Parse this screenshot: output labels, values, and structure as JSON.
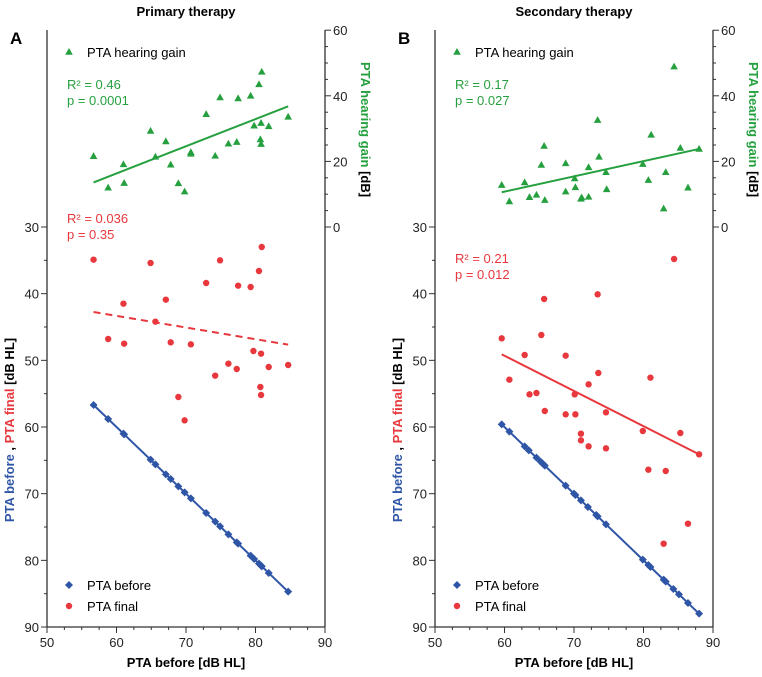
{
  "colors": {
    "gain": "#26a03f",
    "final": "#e8383d",
    "before": "#2f55a6",
    "axis": "#333333"
  },
  "chart_data": [
    {
      "type": "scatter",
      "panel_label": "A",
      "title": "Primary therapy",
      "xlabel": "PTA before [dB HL]",
      "ylabel_left": {
        "part1": "PTA before",
        "sep": " , ",
        "part2": "PTA final",
        "unit": " [dB HL]"
      },
      "ylabel_right": {
        "main": "PTA hearing gain",
        "unit": " [dB]"
      },
      "xlim": [
        50,
        90
      ],
      "xticks": [
        50,
        60,
        70,
        80,
        90
      ],
      "ylim_left": [
        30,
        90
      ],
      "yticks_left": [
        30,
        40,
        50,
        60,
        70,
        80,
        90
      ],
      "left_inverted": true,
      "ylim_right": [
        0,
        60
      ],
      "yticks_right": [
        0,
        20,
        40,
        60
      ],
      "legend": {
        "gain": "PTA hearing gain",
        "before": "PTA before",
        "final": "PTA final"
      },
      "stats": {
        "gain_r2": "R² = 0.46",
        "gain_p": "p  = 0.0001",
        "final_r2": "R² = 0.036",
        "final_p": "p  = 0.35"
      },
      "series": [
        {
          "name": "PTA before",
          "axis": "left",
          "marker": "diamond",
          "color_key": "before",
          "x": [
            56.7,
            58.8,
            61.0,
            61.1,
            64.9,
            65.6,
            67.1,
            67.8,
            68.9,
            69.8,
            70.7,
            72.9,
            74.2,
            74.9,
            76.1,
            77.3,
            77.5,
            79.3,
            79.8,
            80.5,
            80.8,
            80.9,
            81.9,
            84.7
          ],
          "y": [
            56.7,
            58.8,
            61.0,
            61.1,
            64.9,
            65.6,
            67.1,
            67.8,
            68.9,
            69.8,
            70.7,
            72.9,
            74.2,
            74.9,
            76.1,
            77.3,
            77.5,
            79.3,
            79.8,
            80.5,
            80.8,
            80.9,
            81.9,
            84.7
          ]
        },
        {
          "name": "PTA final",
          "axis": "left",
          "marker": "circle",
          "color_key": "final",
          "x": [
            56.7,
            64.9,
            74.9,
            80.9,
            80.5,
            72.9,
            77.5,
            79.3,
            61.0,
            67.1,
            65.6,
            58.8,
            61.1,
            67.8,
            70.7,
            79.7,
            80.8,
            76.1,
            77.3,
            81.9,
            84.7,
            74.2,
            80.7,
            80.8,
            68.9,
            69.8
          ],
          "y": [
            34.9,
            35.4,
            35.0,
            33.0,
            36.6,
            38.4,
            38.8,
            39.0,
            41.5,
            40.9,
            44.2,
            46.8,
            47.5,
            47.3,
            47.6,
            48.6,
            49.0,
            50.5,
            51.3,
            51.0,
            50.7,
            52.3,
            54.0,
            55.2,
            55.5,
            59.0
          ]
        },
        {
          "name": "PTA hearing gain",
          "axis": "right",
          "marker": "triangle",
          "color_key": "gain",
          "x": [
            56.7,
            58.8,
            61.0,
            61.1,
            64.9,
            65.6,
            67.1,
            67.8,
            68.9,
            69.8,
            70.7,
            70.7,
            72.9,
            74.2,
            74.9,
            76.1,
            77.3,
            77.5,
            79.3,
            79.8,
            80.5,
            80.8,
            80.9,
            80.7,
            80.8,
            81.9,
            84.7
          ],
          "y": [
            21.6,
            12.0,
            19.1,
            13.4,
            29.3,
            21.4,
            26.1,
            19.0,
            13.3,
            10.8,
            22.8,
            22.3,
            34.4,
            21.7,
            39.5,
            25.4,
            25.9,
            39.2,
            40.0,
            30.9,
            43.5,
            31.7,
            47.3,
            26.7,
            25.3,
            30.7,
            33.6
          ]
        }
      ],
      "trendlines": [
        {
          "series": "PTA hearing gain",
          "axis": "right",
          "x": [
            56.7,
            84.7
          ],
          "y": [
            13.6,
            36.8
          ],
          "style": "solid",
          "color_key": "gain"
        },
        {
          "series": "PTA final",
          "axis": "left",
          "x": [
            56.7,
            84.7
          ],
          "y": [
            42.75,
            47.65
          ],
          "style": "dashed",
          "color_key": "final"
        },
        {
          "series": "PTA before",
          "axis": "left",
          "x": [
            56.7,
            84.7
          ],
          "y": [
            56.7,
            84.7
          ],
          "style": "solid",
          "color_key": "before"
        }
      ]
    },
    {
      "type": "scatter",
      "panel_label": "B",
      "title": "Secondary therapy",
      "xlabel": "PTA before [dB HL]",
      "ylabel_left": {
        "part1": "PTA before",
        "sep": " , ",
        "part2": "PTA final",
        "unit": " [dB HL]"
      },
      "ylabel_right": {
        "main": "PTA hearing gain",
        "unit": " [dB]"
      },
      "xlim": [
        50,
        90
      ],
      "xticks": [
        50,
        60,
        70,
        80,
        90
      ],
      "ylim_left": [
        30,
        90
      ],
      "yticks_left": [
        30,
        40,
        50,
        60,
        70,
        80,
        90
      ],
      "left_inverted": true,
      "ylim_right": [
        0,
        60
      ],
      "yticks_right": [
        0,
        20,
        40,
        60
      ],
      "legend": {
        "gain": "PTA hearing gain",
        "before": "PTA before",
        "final": "PTA final"
      },
      "stats": {
        "gain_r2": "R² = 0.17",
        "gain_p": "p  = 0.027",
        "final_r2": "R² = 0.21",
        "final_p": "p  = 0.012"
      },
      "series": [
        {
          "name": "PTA before",
          "axis": "left",
          "marker": "diamond",
          "color_key": "before",
          "x": [
            59.6,
            60.7,
            62.9,
            63.5,
            64.6,
            65.2,
            65.5,
            65.8,
            68.8,
            70.0,
            70.2,
            71.0,
            72.0,
            73.2,
            73.4,
            74.6,
            79.9,
            80.7,
            81.0,
            82.9,
            83.2,
            84.3,
            85.1,
            86.4,
            88.0
          ],
          "y": [
            59.6,
            60.7,
            62.9,
            63.5,
            64.6,
            65.2,
            65.5,
            65.8,
            68.8,
            70.0,
            70.2,
            71.0,
            72.0,
            73.2,
            73.4,
            74.6,
            79.9,
            80.7,
            81.0,
            82.9,
            83.2,
            84.3,
            85.1,
            86.4,
            88.0
          ]
        },
        {
          "name": "PTA final",
          "axis": "left",
          "marker": "circle",
          "color_key": "final",
          "x": [
            59.6,
            65.3,
            62.9,
            68.8,
            60.7,
            73.5,
            81.0,
            72.1,
            63.6,
            64.6,
            70.1,
            65.8,
            68.8,
            70.2,
            74.6,
            79.9,
            85.3,
            71.0,
            71.0,
            72.1,
            74.6,
            88.0,
            80.7,
            83.2,
            86.4,
            82.9,
            65.7,
            73.4,
            84.4
          ],
          "y": [
            46.7,
            46.2,
            49.2,
            49.3,
            52.9,
            51.9,
            52.6,
            53.6,
            55.1,
            54.9,
            55.1,
            57.6,
            58.1,
            58.1,
            57.8,
            60.6,
            60.9,
            61.0,
            62.0,
            62.9,
            63.2,
            64.1,
            66.4,
            66.6,
            74.5,
            77.5,
            40.8,
            40.1,
            34.8
          ]
        },
        {
          "name": "PTA hearing gain",
          "axis": "right",
          "marker": "triangle",
          "color_key": "gain",
          "x": [
            59.6,
            60.7,
            62.9,
            63.6,
            64.6,
            65.3,
            65.7,
            65.8,
            68.8,
            68.8,
            70.1,
            70.2,
            71.0,
            71.1,
            72.1,
            72.1,
            73.4,
            73.6,
            74.6,
            74.7,
            79.9,
            80.7,
            81.1,
            82.9,
            83.2,
            84.4,
            85.3,
            86.4,
            88.0
          ],
          "y": [
            12.8,
            7.8,
            13.6,
            9.1,
            9.8,
            18.9,
            24.7,
            8.2,
            10.8,
            19.4,
            14.8,
            12.1,
            8.6,
            9.0,
            9.2,
            18.2,
            32.6,
            21.4,
            16.7,
            11.5,
            19.2,
            14.3,
            28.1,
            5.6,
            16.7,
            48.9,
            24.1,
            12.0,
            23.8
          ]
        }
      ],
      "trendlines": [
        {
          "series": "PTA hearing gain",
          "axis": "right",
          "x": [
            59.6,
            88.0
          ],
          "y": [
            10.6,
            23.8
          ],
          "style": "solid",
          "color_key": "gain"
        },
        {
          "series": "PTA final",
          "axis": "left",
          "x": [
            59.6,
            88.0
          ],
          "y": [
            49.1,
            64.1
          ],
          "style": "solid",
          "color_key": "final"
        },
        {
          "series": "PTA before",
          "axis": "left",
          "x": [
            59.6,
            88.0
          ],
          "y": [
            59.6,
            88.0
          ],
          "style": "solid",
          "color_key": "before"
        }
      ]
    }
  ]
}
